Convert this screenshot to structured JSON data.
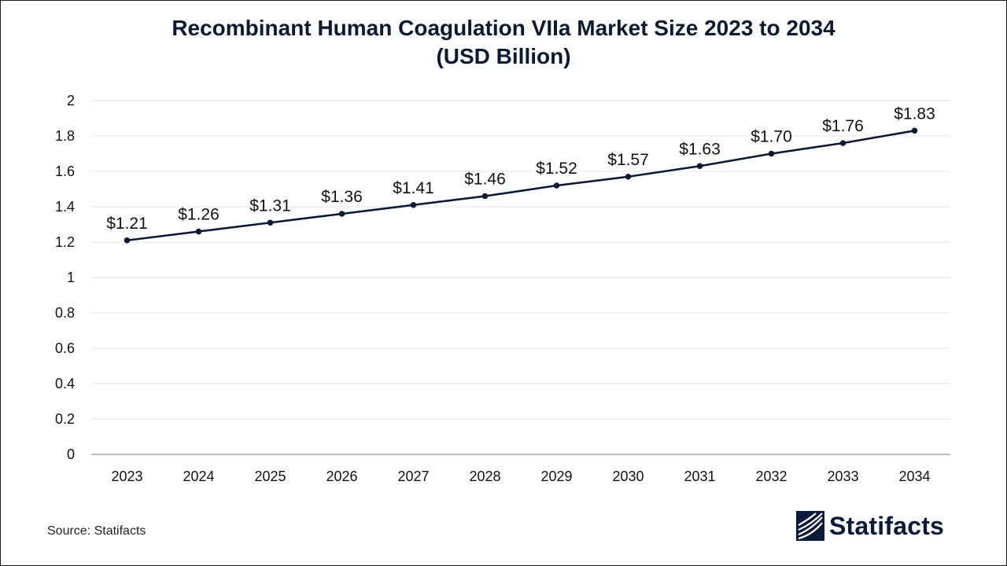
{
  "header": {
    "title_line1": "Recombinant Human Coagulation VIIa Market Size 2023 to 2034",
    "title_line2": "(USD Billion)"
  },
  "footer": {
    "source": "Source: Statifacts",
    "brand": "Statifacts"
  },
  "colors": {
    "line": "#0b1a33",
    "grid": "#e6e6e6",
    "axis": "#a6a6a6",
    "text": "#111111",
    "brand": "#0b1a3b"
  },
  "chart_data": {
    "type": "line",
    "title": "Recombinant Human Coagulation VIIa Market Size 2023 to 2034 (USD Billion)",
    "xlabel": "",
    "ylabel": "",
    "categories": [
      "2023",
      "2024",
      "2025",
      "2026",
      "2027",
      "2028",
      "2029",
      "2030",
      "2031",
      "2032",
      "2033",
      "2034"
    ],
    "series": [
      {
        "values": [
          1.21,
          1.26,
          1.31,
          1.36,
          1.41,
          1.46,
          1.52,
          1.57,
          1.63,
          1.7,
          1.76,
          1.83
        ],
        "labels": [
          "$1.21",
          "$1.26",
          "$1.31",
          "$1.36",
          "$1.41",
          "$1.46",
          "$1.52",
          "$1.57",
          "$1.63",
          "$1.70",
          "$1.76",
          "$1.83"
        ]
      }
    ],
    "ylim": [
      0,
      2
    ],
    "yticks": [
      "0",
      "0.2",
      "0.4",
      "0.6",
      "0.8",
      "1",
      "1.2",
      "1.4",
      "1.6",
      "1.8",
      "2"
    ],
    "grid": true,
    "legend": "none"
  }
}
